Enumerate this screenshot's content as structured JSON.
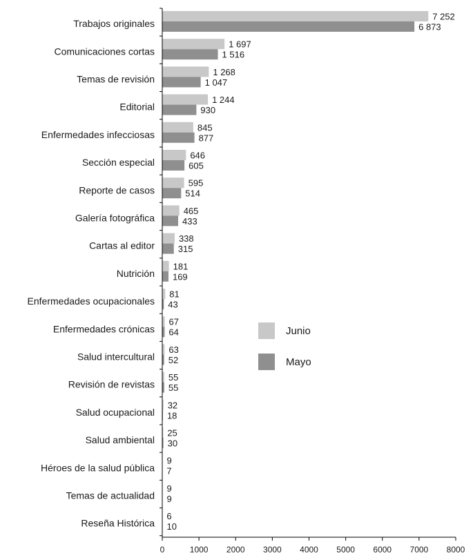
{
  "chart_data": {
    "type": "bar",
    "orientation": "horizontal",
    "categories": [
      "Trabajos originales",
      "Comunicaciones cortas",
      "Temas de revisión",
      "Editorial",
      "Enfermedades infecciosas",
      "Sección especial",
      "Reporte de casos",
      "Galería fotográfica",
      "Cartas al editor",
      "Nutrición",
      "Enfermedades ocupacionales",
      "Enfermedades crónicas",
      "Salud intercultural",
      "Revisión de revistas",
      "Salud ocupacional",
      "Salud ambiental",
      "Héroes de la salud pública",
      "Temas de actualidad",
      "Reseña Histórica"
    ],
    "series": [
      {
        "name": "Junio",
        "color": "#c8c8c8",
        "values": [
          7252,
          1697,
          1268,
          1244,
          845,
          646,
          595,
          465,
          338,
          181,
          81,
          67,
          63,
          55,
          32,
          25,
          9,
          9,
          6
        ],
        "labels": [
          "7 252",
          "1 697",
          "1 268",
          "1 244",
          "845",
          "646",
          "595",
          "465",
          "338",
          "181",
          "81",
          "67",
          "63",
          "55",
          "32",
          "25",
          "9",
          "9",
          "6"
        ]
      },
      {
        "name": "Mayo",
        "color": "#8f8f8f",
        "values": [
          6873,
          1516,
          1047,
          930,
          877,
          605,
          514,
          433,
          315,
          169,
          43,
          64,
          52,
          55,
          18,
          30,
          7,
          9,
          10
        ],
        "labels": [
          "6 873",
          "1 516",
          "1 047",
          "930",
          "877",
          "605",
          "514",
          "433",
          "315",
          "169",
          "43",
          "64",
          "52",
          "55",
          "18",
          "30",
          "7",
          "9",
          "10"
        ]
      }
    ],
    "xticks": [
      0,
      1000,
      2000,
      3000,
      4000,
      5000,
      6000,
      7000,
      8000
    ],
    "xlim": [
      0,
      8000
    ],
    "title": "",
    "xlabel": "",
    "ylabel": "",
    "grid": false,
    "legend": {
      "position": "right-center"
    }
  }
}
